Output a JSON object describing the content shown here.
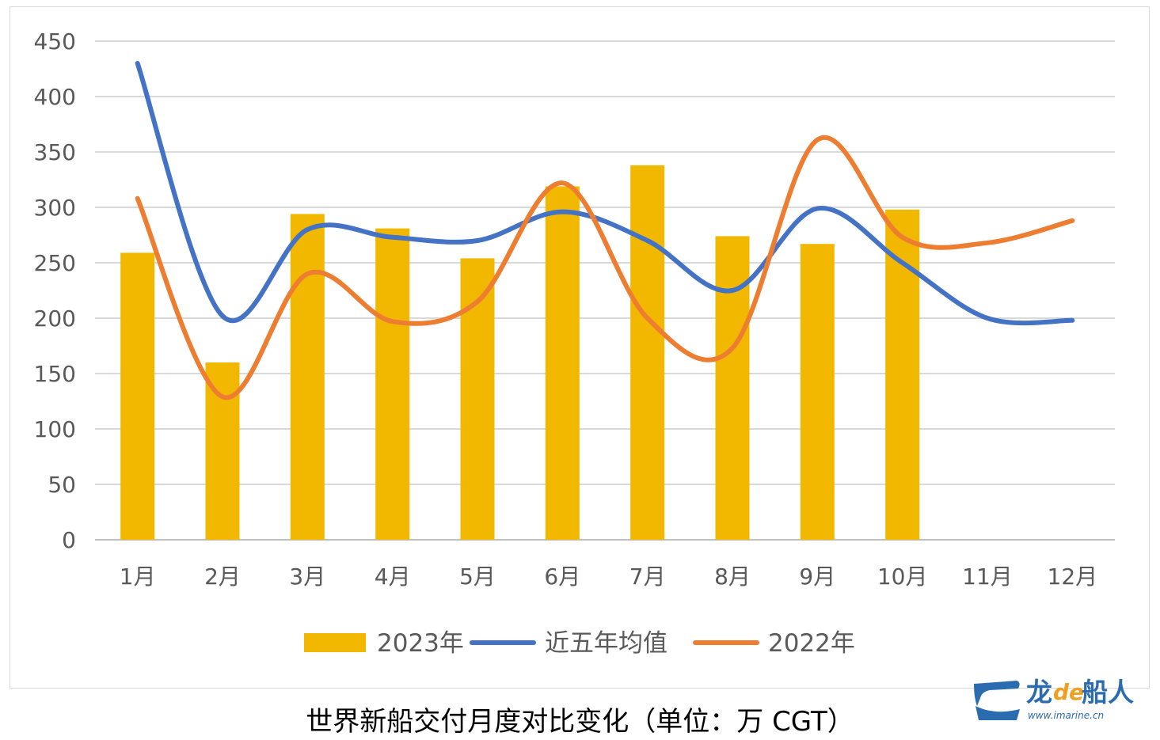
{
  "caption": "世界新船交付月度对比变化（单位：万 CGT）",
  "logo": {
    "brand": "龙",
    "brand_de": "de",
    "brand_tail": "船人",
    "url": "www.imarine.cn"
  },
  "colors": {
    "bar": "#f2b800",
    "avg": "#4472c4",
    "y2022": "#ed7d31",
    "grid": "#d9d9d9",
    "axis": "#bfbfbf",
    "text": "#595959"
  },
  "chart_data": {
    "type": "bar",
    "categories": [
      "1月",
      "2月",
      "3月",
      "4月",
      "5月",
      "6月",
      "7月",
      "8月",
      "9月",
      "10月",
      "11月",
      "12月"
    ],
    "ylim": [
      0,
      450
    ],
    "yticks": [
      0,
      50,
      100,
      150,
      200,
      250,
      300,
      350,
      400,
      450
    ],
    "grid": true,
    "legend_position": "bottom",
    "series": [
      {
        "name": "2023年",
        "kind": "bar",
        "values": [
          259,
          160,
          294,
          281,
          254,
          319,
          338,
          274,
          267,
          298,
          null,
          null
        ]
      },
      {
        "name": "近五年均值",
        "kind": "line",
        "values": [
          430,
          202,
          280,
          273,
          270,
          296,
          270,
          225,
          299,
          250,
          200,
          198
        ]
      },
      {
        "name": "2022年",
        "kind": "line",
        "values": [
          308,
          129,
          240,
          197,
          215,
          322,
          200,
          173,
          361,
          273,
          268,
          288
        ]
      }
    ]
  }
}
